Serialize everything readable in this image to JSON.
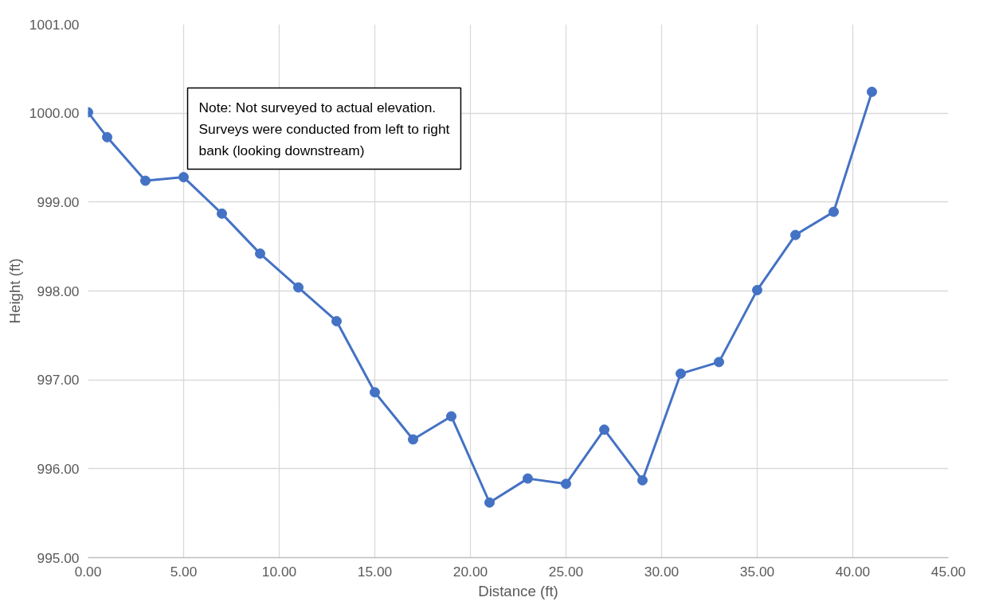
{
  "chart_data": {
    "type": "line",
    "xlabel": "Distance (ft)",
    "ylabel": "Height (ft)",
    "x": [
      0,
      1,
      3,
      5,
      7,
      9,
      11,
      13,
      15,
      17,
      19,
      21,
      23,
      25,
      27,
      29,
      31,
      33,
      35,
      37,
      39,
      41
    ],
    "series": [
      {
        "color": "#4472c4",
        "values": [
          1000.01,
          999.73,
          999.24,
          999.28,
          998.87,
          998.42,
          998.04,
          997.66,
          996.86,
          996.33,
          996.59,
          995.62,
          995.89,
          995.83,
          996.44,
          995.87,
          997.07,
          997.2,
          998.01,
          998.63,
          998.89,
          1000.24
        ]
      }
    ],
    "xlim": [
      0,
      45
    ],
    "ylim": [
      995,
      1001
    ],
    "xticks": [
      {
        "value": 0,
        "label": "0.00"
      },
      {
        "value": 5,
        "label": "5.00"
      },
      {
        "value": 10,
        "label": "10.00"
      },
      {
        "value": 15,
        "label": "15.00"
      },
      {
        "value": 20,
        "label": "20.00"
      },
      {
        "value": 25,
        "label": "25.00"
      },
      {
        "value": 30,
        "label": "30.00"
      },
      {
        "value": 35,
        "label": "35.00"
      },
      {
        "value": 40,
        "label": "40.00"
      },
      {
        "value": 45,
        "label": "45.00"
      }
    ],
    "yticks": [
      {
        "value": 995,
        "label": "995.00"
      },
      {
        "value": 996,
        "label": "996.00"
      },
      {
        "value": 997,
        "label": "997.00"
      },
      {
        "value": 998,
        "label": "998.00"
      },
      {
        "value": 999,
        "label": "999.00"
      },
      {
        "value": 1000,
        "label": "1000.00"
      },
      {
        "value": 1001,
        "label": "1001.00"
      }
    ],
    "annotations": [
      "Note: Not surveyed to actual elevation. Surveys were conducted from left to right bank (looking downstream)"
    ],
    "grid": true,
    "marker": "circle",
    "line_style": "solid"
  }
}
